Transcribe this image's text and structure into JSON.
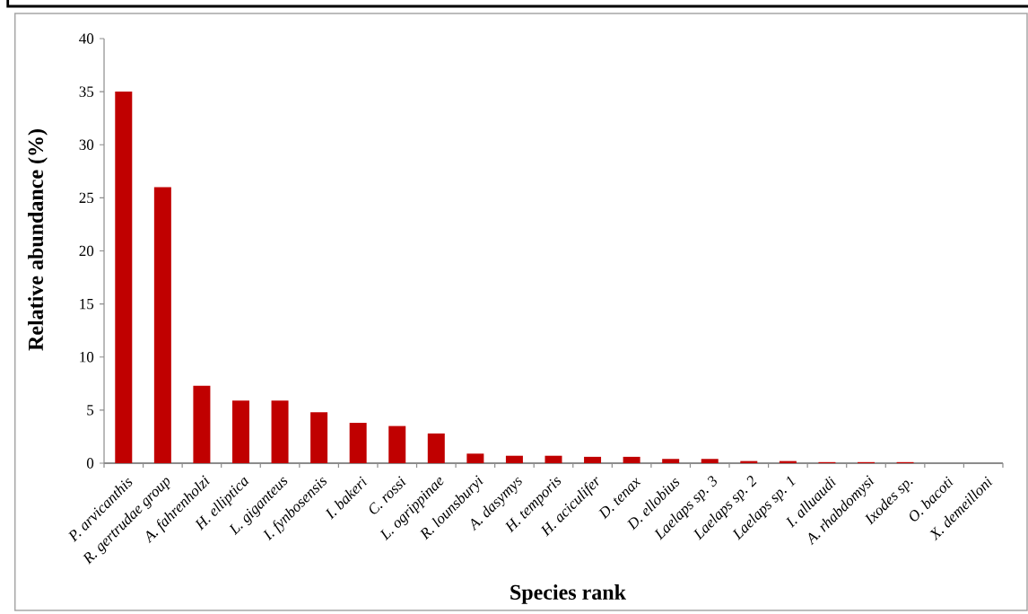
{
  "chart_data": {
    "type": "bar",
    "xlabel": "Species rank",
    "ylabel": "Relative abundance (%)",
    "categories": [
      "P. arvicanthis",
      "R. gertrudae group",
      "A. fahrenholzi",
      "H. elliptica",
      "L. giganteus",
      "I. fynbosensis",
      "I. bakeri",
      "C. rossi",
      "L. ogrippinae",
      "R. lounsburyi",
      "A. dasymys",
      "H. temporis",
      "H. aciculifer",
      "D. tenax",
      "D. ellobius",
      "Laelaps sp. 3",
      "Laelaps sp. 2",
      "Laelaps sp. 1",
      "I. alluaudi",
      "A. rhabdomysi",
      "Ixodes sp.",
      "O. bacoti",
      "X. demeilloni"
    ],
    "values": [
      35,
      26,
      7.3,
      5.9,
      5.9,
      4.8,
      3.8,
      3.5,
      2.8,
      0.9,
      0.7,
      0.7,
      0.6,
      0.6,
      0.4,
      0.4,
      0.2,
      0.2,
      0.1,
      0.1,
      0.1,
      0,
      0
    ],
    "color": "#c00000",
    "ylim": [
      0,
      40
    ],
    "yticks": [
      0,
      5,
      10,
      15,
      20,
      25,
      30,
      35,
      40
    ]
  }
}
